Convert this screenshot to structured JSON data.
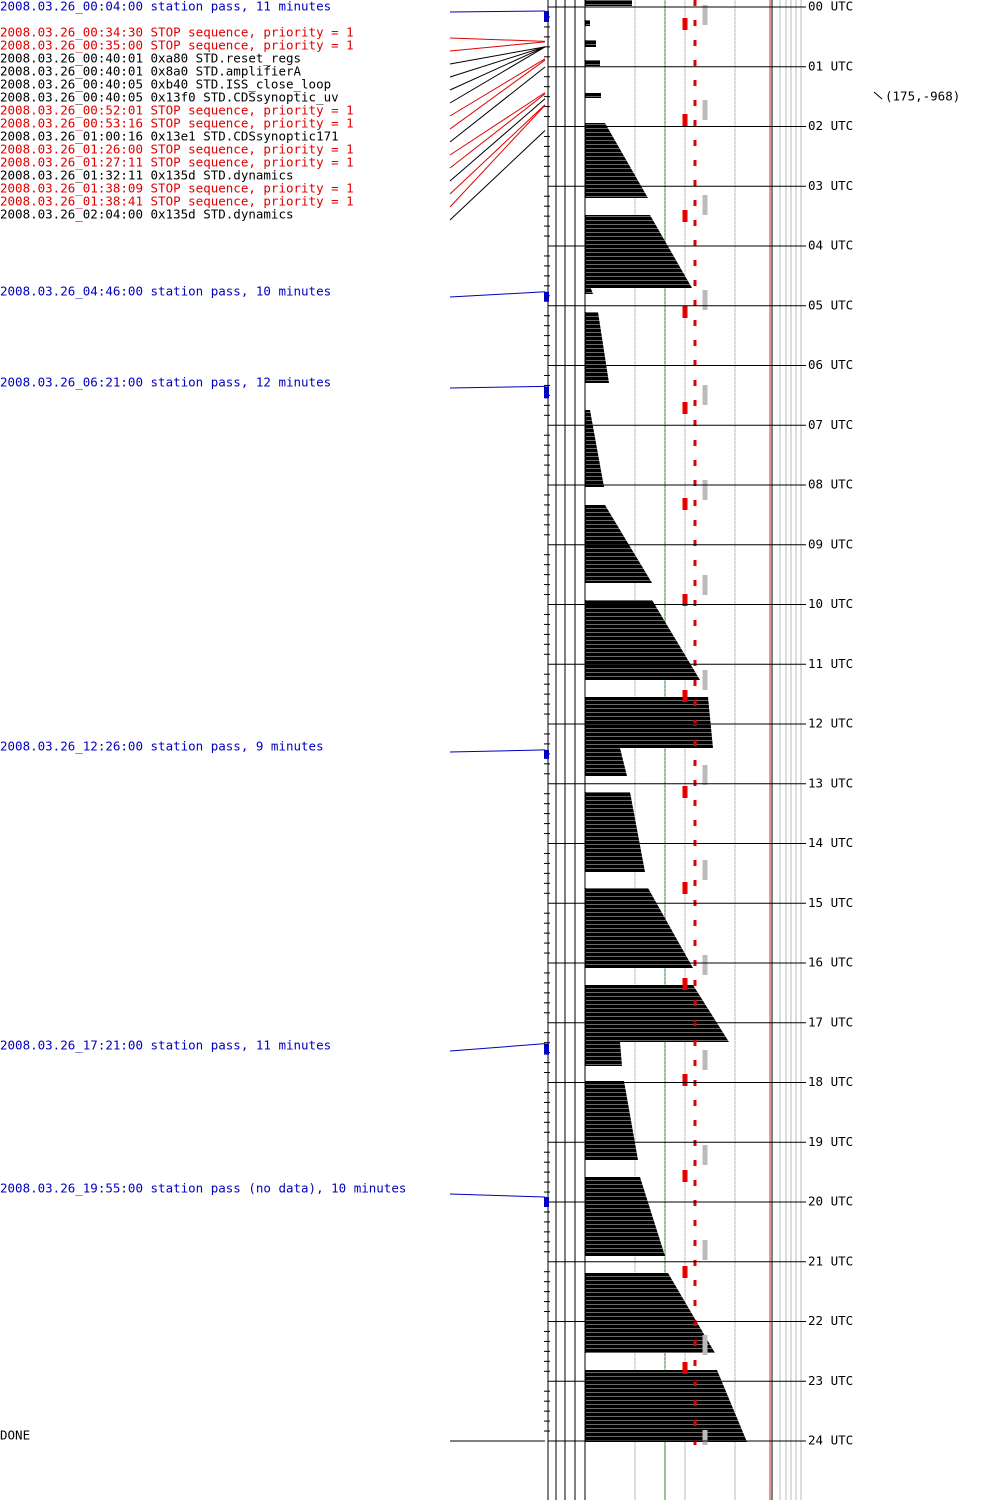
{
  "events": [
    {
      "text": "2008.03.26_00:04:00 station pass, 11 minutes",
      "color": "#0000c0"
    },
    {
      "text": "2008.03.26_00:34:30 STOP sequence, priority = 1",
      "color": "#e00000"
    },
    {
      "text": "2008.03.26_00:35:00 STOP sequence, priority = 1",
      "color": "#e00000"
    },
    {
      "text": "2008.03.26_00:40:01  0xa80 STD.reset_regs",
      "color": "#000000"
    },
    {
      "text": "2008.03.26_00:40:01  0x8a0 STD.amplifierA",
      "color": "#000000"
    },
    {
      "text": "2008.03.26_00:40:05  0xb40 STD.ISS_close_loop",
      "color": "#000000"
    },
    {
      "text": "2008.03.26_00:40:05 0x13f0 STD.CDSsynoptic_uv",
      "color": "#000000"
    },
    {
      "text": "2008.03.26_00:52:01 STOP sequence, priority = 1",
      "color": "#e00000"
    },
    {
      "text": "2008.03.26_00:53:16 STOP sequence, priority = 1",
      "color": "#e00000"
    },
    {
      "text": "2008.03.26_01:00:16 0x13e1 STD.CDSsynoptic171",
      "color": "#000000"
    },
    {
      "text": "2008.03.26_01:26:00 STOP sequence, priority = 1",
      "color": "#e00000"
    },
    {
      "text": "2008.03.26_01:27:11 STOP sequence, priority = 1",
      "color": "#e00000"
    },
    {
      "text": "2008.03.26_01:32:11 0x135d STD.dynamics",
      "color": "#000000"
    },
    {
      "text": "2008.03.26_01:38:09 STOP sequence, priority = 1",
      "color": "#e00000"
    },
    {
      "text": "2008.03.26_01:38:41 STOP sequence, priority = 1",
      "color": "#e00000"
    },
    {
      "text": "2008.03.26_02:04:00 0x135d STD.dynamics",
      "color": "#000000"
    },
    {
      "text": "2008.03.26_04:46:00 station pass, 10 minutes",
      "color": "#0000c0"
    },
    {
      "text": "2008.03.26_06:21:00 station pass, 12 minutes",
      "color": "#0000c0"
    },
    {
      "text": "2008.03.26_12:26:00 station pass, 9 minutes",
      "color": "#0000c0"
    },
    {
      "text": "2008.03.26_17:21:00 station pass, 11 minutes",
      "color": "#0000c0"
    },
    {
      "text": "2008.03.26_19:55:00 station pass (no data), 10 minutes",
      "color": "#0000c0"
    },
    {
      "text": "DONE",
      "color": "#000000"
    }
  ],
  "hours": [
    "00 UTC",
    "01 UTC",
    "02 UTC",
    "03 UTC",
    "04 UTC",
    "05 UTC",
    "06 UTC",
    "07 UTC",
    "08 UTC",
    "09 UTC",
    "10 UTC",
    "11 UTC",
    "12 UTC",
    "13 UTC",
    "14 UTC",
    "15 UTC",
    "16 UTC",
    "17 UTC",
    "18 UTC",
    "19 UTC",
    "20 UTC",
    "21 UTC",
    "22 UTC",
    "23 UTC",
    "24 UTC"
  ],
  "cursor_label": "(175,-968)"
}
